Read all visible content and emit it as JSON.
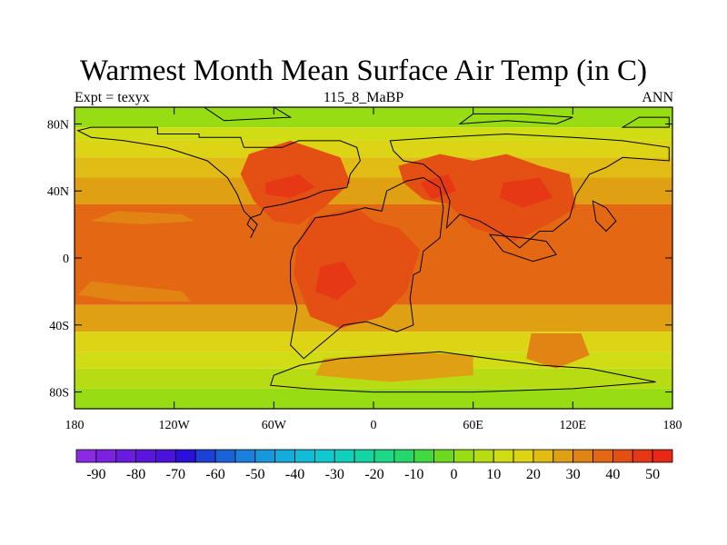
{
  "title": "Warmest Month Mean Surface Air Temp (in C)",
  "left_string": "Expt = texyx",
  "center_string": "115_8_MaBP",
  "right_string": "ANN",
  "map": {
    "lon_range": [
      -180,
      180
    ],
    "lat_range": [
      -90,
      90
    ],
    "lon_ticks": [
      {
        "value": -180,
        "label": "180"
      },
      {
        "value": -120,
        "label": "120W"
      },
      {
        "value": -60,
        "label": "60W"
      },
      {
        "value": 0,
        "label": "0"
      },
      {
        "value": 60,
        "label": "60E"
      },
      {
        "value": 120,
        "label": "120E"
      },
      {
        "value": 180,
        "label": "180"
      }
    ],
    "lat_ticks": [
      {
        "value": 80,
        "label": "80N"
      },
      {
        "value": 40,
        "label": "40N"
      },
      {
        "value": 0,
        "label": "0"
      },
      {
        "value": -40,
        "label": "40S"
      },
      {
        "value": -80,
        "label": "80S"
      }
    ]
  },
  "colorbar": {
    "levels": [
      -95,
      -90,
      -85,
      -80,
      -75,
      -70,
      -65,
      -60,
      -55,
      -50,
      -45,
      -40,
      -35,
      -30,
      -25,
      -20,
      -15,
      -10,
      -5,
      0,
      5,
      10,
      15,
      20,
      25,
      30,
      35,
      40,
      45,
      50,
      55
    ],
    "colors": [
      "#8a2be2",
      "#7a22e0",
      "#6a1cde",
      "#5a16dc",
      "#4a12da",
      "#2a10d8",
      "#1e40d6",
      "#1a62d8",
      "#1a80dc",
      "#1898dc",
      "#14acdc",
      "#10bcd8",
      "#10c8d0",
      "#10d0bc",
      "#14d4a4",
      "#1cd888",
      "#24d86c",
      "#40da40",
      "#6cd820",
      "#98dc14",
      "#b8dc14",
      "#d0dc14",
      "#dcd414",
      "#e0bc14",
      "#e0a014",
      "#e28414",
      "#e46814",
      "#e45014",
      "#e63814",
      "#e82814"
    ],
    "labels": [
      {
        "value": -90,
        "text": "-90"
      },
      {
        "value": -80,
        "text": "-80"
      },
      {
        "value": -70,
        "text": "-70"
      },
      {
        "value": -60,
        "text": "-60"
      },
      {
        "value": -50,
        "text": "-50"
      },
      {
        "value": -40,
        "text": "-40"
      },
      {
        "value": -30,
        "text": "-30"
      },
      {
        "value": -20,
        "text": "-20"
      },
      {
        "value": -10,
        "text": "-10"
      },
      {
        "value": 0,
        "text": "0"
      },
      {
        "value": 10,
        "text": "10"
      },
      {
        "value": 20,
        "text": "20"
      },
      {
        "value": 30,
        "text": "30"
      },
      {
        "value": 40,
        "text": "40"
      },
      {
        "value": 50,
        "text": "50"
      }
    ]
  },
  "bands": [
    {
      "lat": [
        78,
        90
      ],
      "color": "#98dc14"
    },
    {
      "lat": [
        70,
        78
      ],
      "color": "#d0dc14"
    },
    {
      "lat": [
        60,
        70
      ],
      "color": "#dcd414"
    },
    {
      "lat": [
        48,
        60
      ],
      "color": "#e0bc14"
    },
    {
      "lat": [
        32,
        48
      ],
      "color": "#e0a014"
    },
    {
      "lat": [
        -28,
        32
      ],
      "color": "#e46814"
    },
    {
      "lat": [
        -44,
        -28
      ],
      "color": "#e0a014"
    },
    {
      "lat": [
        -56,
        -44
      ],
      "color": "#dcd414"
    },
    {
      "lat": [
        -66,
        -56
      ],
      "color": "#d0dc14"
    },
    {
      "lat": [
        -78,
        -66
      ],
      "color": "#b8dc14"
    },
    {
      "lat": [
        -90,
        -78
      ],
      "color": "#98dc14"
    }
  ],
  "hot_regions": [
    {
      "color": "#e45014",
      "points": [
        [
          -75,
          62
        ],
        [
          -50,
          70
        ],
        [
          -20,
          60
        ],
        [
          -14,
          45
        ],
        [
          -30,
          30
        ],
        [
          -45,
          20
        ],
        [
          -60,
          22
        ],
        [
          -72,
          34
        ],
        [
          -80,
          50
        ]
      ]
    },
    {
      "color": "#e63814",
      "points": [
        [
          -65,
          45
        ],
        [
          -45,
          50
        ],
        [
          -35,
          42
        ],
        [
          -50,
          36
        ],
        [
          -65,
          38
        ]
      ]
    },
    {
      "color": "#e45014",
      "points": [
        [
          -38,
          24
        ],
        [
          -10,
          30
        ],
        [
          0,
          22
        ],
        [
          15,
          18
        ],
        [
          28,
          5
        ],
        [
          20,
          -20
        ],
        [
          5,
          -35
        ],
        [
          -20,
          -42
        ],
        [
          -38,
          -35
        ],
        [
          -48,
          -10
        ],
        [
          -46,
          8
        ]
      ]
    },
    {
      "color": "#e63814",
      "points": [
        [
          -32,
          -5
        ],
        [
          -18,
          -2
        ],
        [
          -10,
          -15
        ],
        [
          -22,
          -25
        ],
        [
          -35,
          -20
        ]
      ]
    },
    {
      "color": "#e45014",
      "points": [
        [
          15,
          55
        ],
        [
          40,
          62
        ],
        [
          60,
          58
        ],
        [
          80,
          62
        ],
        [
          100,
          55
        ],
        [
          118,
          50
        ],
        [
          122,
          30
        ],
        [
          105,
          20
        ],
        [
          85,
          10
        ],
        [
          60,
          18
        ],
        [
          45,
          32
        ],
        [
          30,
          35
        ],
        [
          18,
          45
        ]
      ]
    },
    {
      "color": "#e63814",
      "points": [
        [
          28,
          45
        ],
        [
          45,
          50
        ],
        [
          50,
          40
        ],
        [
          35,
          35
        ]
      ]
    },
    {
      "color": "#e63814",
      "points": [
        [
          78,
          45
        ],
        [
          100,
          48
        ],
        [
          108,
          36
        ],
        [
          90,
          30
        ],
        [
          76,
          36
        ]
      ]
    },
    {
      "color": "#e28414",
      "points": [
        [
          95,
          -45
        ],
        [
          125,
          -45
        ],
        [
          130,
          -58
        ],
        [
          110,
          -66
        ],
        [
          92,
          -60
        ]
      ]
    },
    {
      "color": "#e0a014",
      "points": [
        [
          -30,
          -60
        ],
        [
          20,
          -56
        ],
        [
          60,
          -58
        ],
        [
          60,
          -70
        ],
        [
          10,
          -74
        ],
        [
          -35,
          -70
        ]
      ]
    },
    {
      "color": "#e28414",
      "points": [
        [
          -155,
          28
        ],
        [
          -115,
          26
        ],
        [
          -108,
          22
        ],
        [
          -140,
          20
        ],
        [
          -170,
          22
        ]
      ]
    },
    {
      "color": "#e28414",
      "points": [
        [
          -170,
          -14
        ],
        [
          -115,
          -20
        ],
        [
          -110,
          -26
        ],
        [
          -150,
          -26
        ],
        [
          -178,
          -22
        ]
      ]
    }
  ],
  "coastlines": [
    [
      [
        -170,
        78
      ],
      [
        -130,
        78
      ],
      [
        -130,
        74
      ],
      [
        -105,
        74
      ],
      [
        -105,
        72
      ],
      [
        -80,
        72
      ],
      [
        -78,
        66
      ],
      [
        -55,
        66
      ],
      [
        -45,
        70
      ],
      [
        -20,
        70
      ],
      [
        -10,
        66
      ],
      [
        -8,
        58
      ],
      [
        -14,
        50
      ],
      [
        -16,
        42
      ],
      [
        -30,
        40
      ],
      [
        -40,
        36
      ],
      [
        -55,
        32
      ],
      [
        -66,
        30
      ],
      [
        -68,
        26
      ],
      [
        -74,
        24
      ],
      [
        -76,
        20
      ],
      [
        -72,
        16
      ],
      [
        -74,
        12
      ],
      [
        -70,
        20
      ],
      [
        -78,
        28
      ],
      [
        -82,
        38
      ],
      [
        -88,
        48
      ],
      [
        -100,
        58
      ],
      [
        -125,
        66
      ],
      [
        -150,
        70
      ],
      [
        -170,
        72
      ],
      [
        -178,
        76
      ]
    ],
    [
      [
        -42,
        14
      ],
      [
        -35,
        24
      ],
      [
        -20,
        26
      ],
      [
        -5,
        30
      ],
      [
        5,
        28
      ],
      [
        8,
        40
      ],
      [
        20,
        46
      ],
      [
        30,
        48
      ],
      [
        40,
        42
      ],
      [
        42,
        30
      ],
      [
        40,
        12
      ],
      [
        30,
        4
      ],
      [
        28,
        -8
      ],
      [
        24,
        -10
      ],
      [
        22,
        -24
      ],
      [
        24,
        -40
      ],
      [
        14,
        -44
      ],
      [
        -4,
        -38
      ],
      [
        -18,
        -40
      ],
      [
        -30,
        -50
      ],
      [
        -42,
        -60
      ],
      [
        -50,
        -52
      ],
      [
        -46,
        -30
      ],
      [
        -50,
        -14
      ],
      [
        -50,
        -2
      ],
      [
        -48,
        6
      ]
    ],
    [
      [
        10,
        70
      ],
      [
        40,
        72
      ],
      [
        80,
        74
      ],
      [
        120,
        72
      ],
      [
        150,
        70
      ],
      [
        178,
        66
      ],
      [
        178,
        58
      ],
      [
        150,
        60
      ],
      [
        140,
        54
      ],
      [
        130,
        50
      ],
      [
        122,
        38
      ],
      [
        118,
        24
      ],
      [
        108,
        16
      ],
      [
        100,
        16
      ],
      [
        88,
        6
      ],
      [
        78,
        14
      ],
      [
        64,
        22
      ],
      [
        52,
        26
      ],
      [
        44,
        18
      ],
      [
        46,
        34
      ],
      [
        40,
        48
      ],
      [
        30,
        56
      ],
      [
        18,
        58
      ],
      [
        12,
        64
      ]
    ],
    [
      [
        132,
        34
      ],
      [
        140,
        30
      ],
      [
        146,
        22
      ],
      [
        140,
        16
      ],
      [
        134,
        22
      ]
    ],
    [
      [
        70,
        14
      ],
      [
        90,
        12
      ],
      [
        104,
        10
      ],
      [
        110,
        2
      ],
      [
        96,
        -2
      ],
      [
        78,
        4
      ]
    ],
    [
      [
        -44,
        -64
      ],
      [
        -20,
        -60
      ],
      [
        10,
        -58
      ],
      [
        40,
        -56
      ],
      [
        70,
        -60
      ],
      [
        100,
        -64
      ],
      [
        130,
        -66
      ],
      [
        150,
        -70
      ],
      [
        170,
        -74
      ],
      [
        120,
        -78
      ],
      [
        60,
        -80
      ],
      [
        0,
        -80
      ],
      [
        -40,
        -78
      ],
      [
        -62,
        -76
      ],
      [
        -60,
        -70
      ]
    ],
    [
      [
        52,
        80
      ],
      [
        80,
        82
      ],
      [
        110,
        80
      ],
      [
        120,
        84
      ],
      [
        90,
        86
      ],
      [
        60,
        86
      ]
    ],
    [
      [
        150,
        78
      ],
      [
        178,
        78
      ],
      [
        178,
        84
      ],
      [
        160,
        84
      ]
    ],
    [
      [
        -102,
        90
      ],
      [
        -60,
        90
      ],
      [
        -50,
        84
      ],
      [
        -90,
        82
      ]
    ]
  ]
}
